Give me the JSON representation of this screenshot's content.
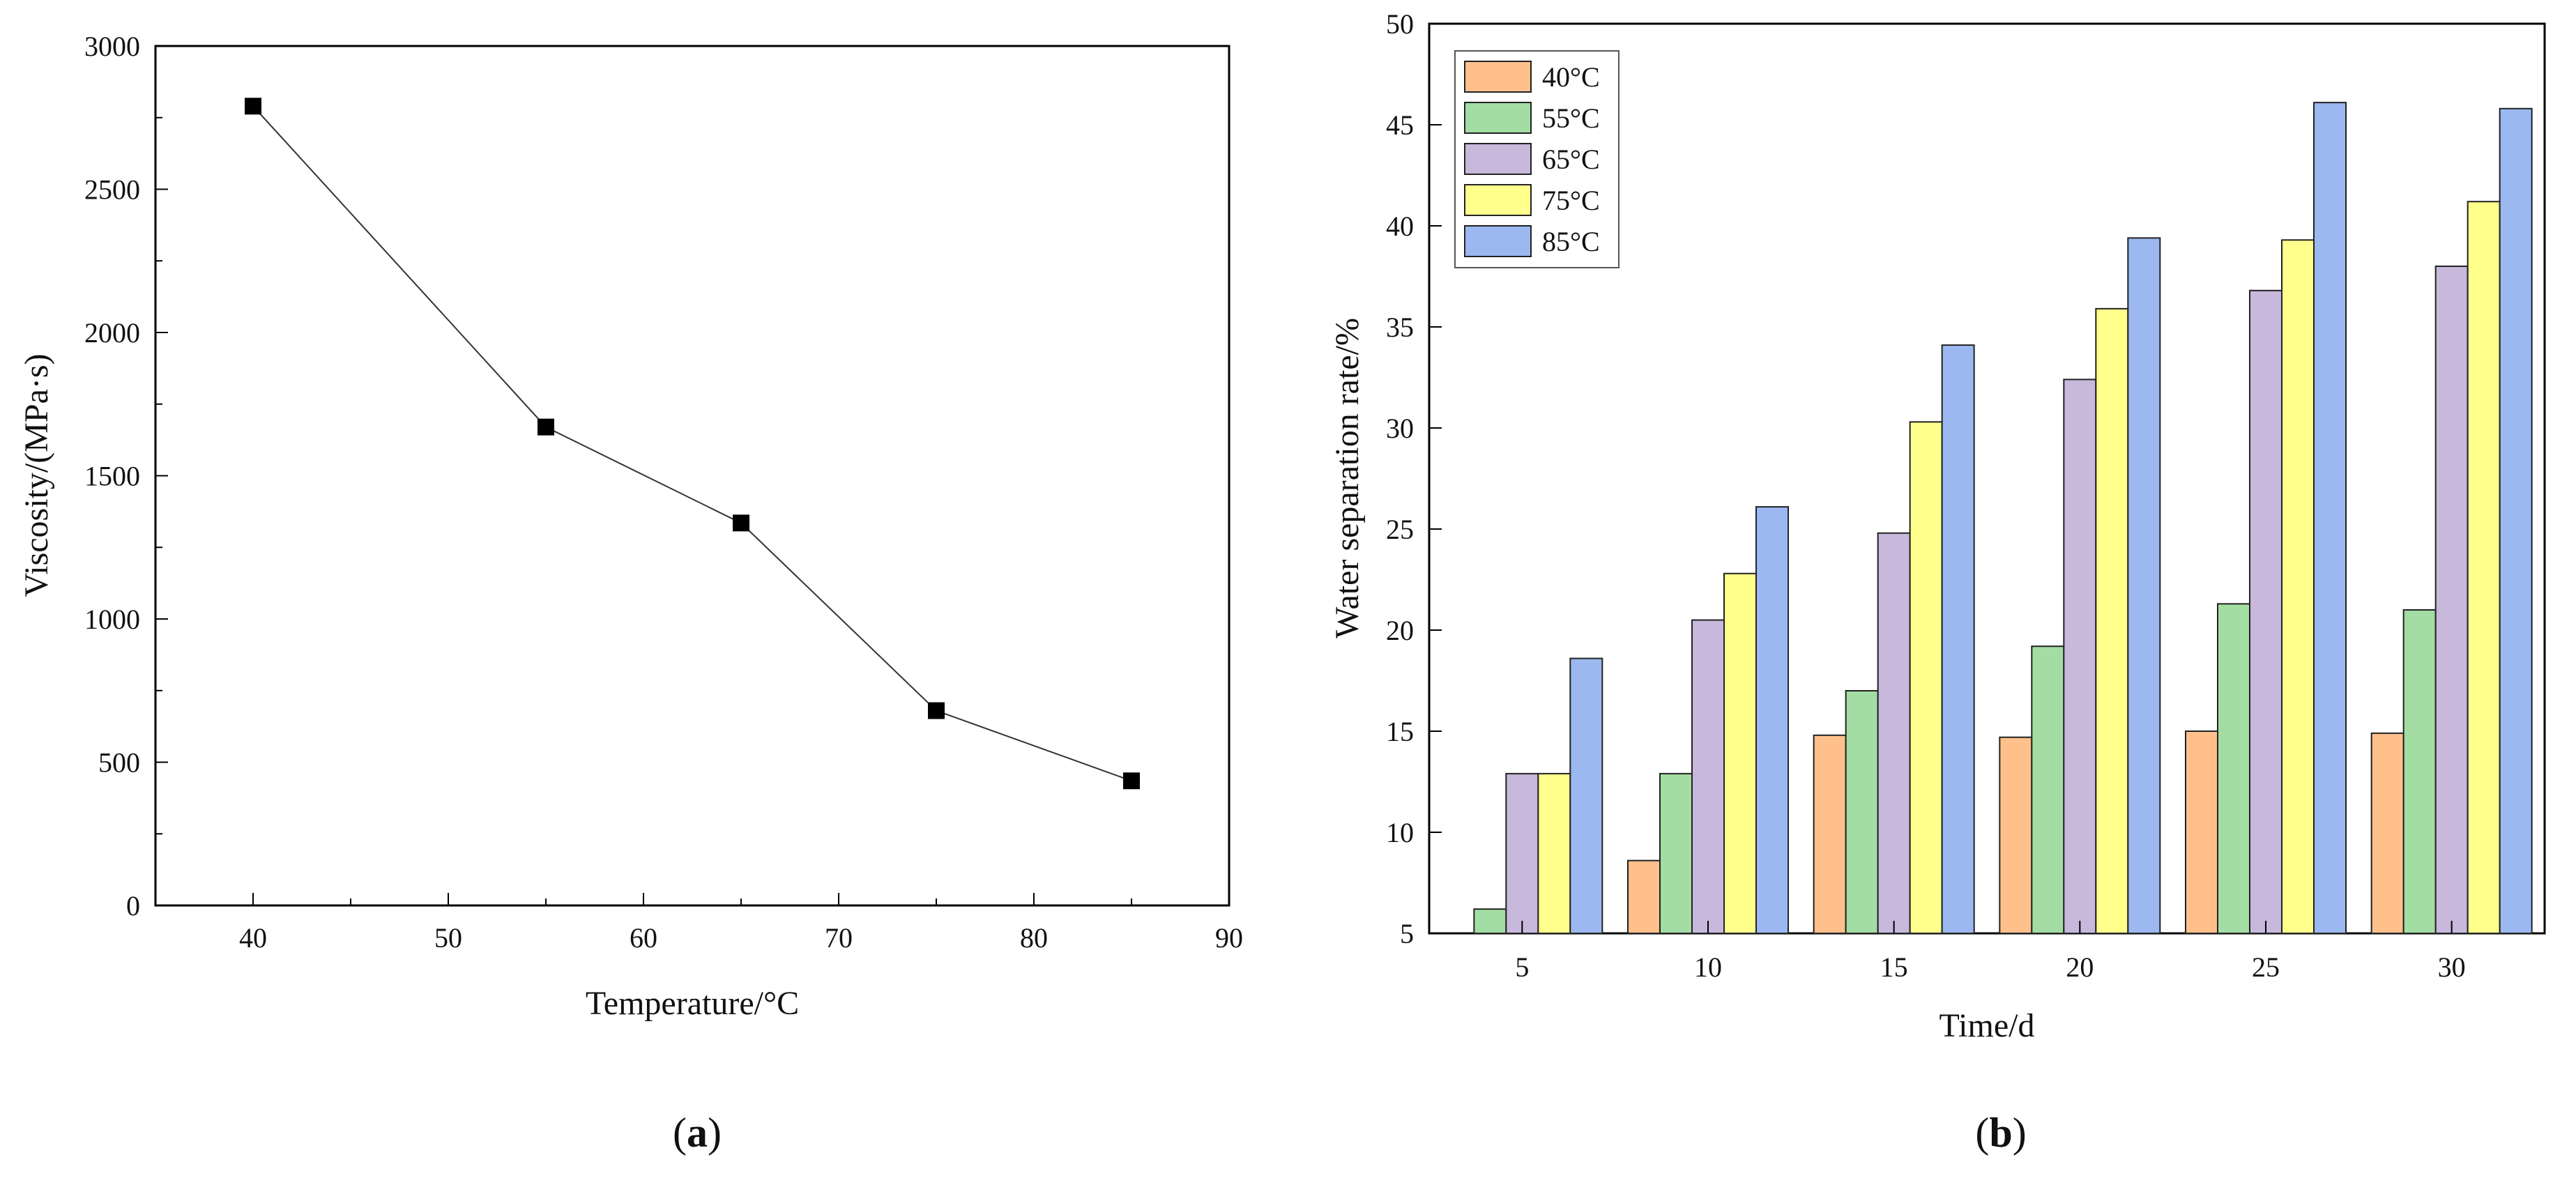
{
  "panels": [
    {
      "id": "a",
      "open": "(",
      "letter": "a",
      "close": ")"
    },
    {
      "id": "b",
      "open": "(",
      "letter": "b",
      "close": ")"
    }
  ],
  "chart_data": [
    {
      "id": "a",
      "type": "line",
      "marker": "square",
      "x": [
        40,
        55,
        65,
        75,
        85
      ],
      "y": [
        2790,
        1670,
        1335,
        680,
        435
      ],
      "xlabel": "Temperature/°C",
      "ylabel": "Viscosity/(MPa·s)",
      "xlim": [
        35,
        90
      ],
      "ylim": [
        0,
        3000
      ],
      "xticks": [
        "40",
        "50",
        "60",
        "70",
        "80",
        "90"
      ],
      "yticks": [
        "0",
        "500",
        "1000",
        "1500",
        "2000",
        "2500",
        "3000"
      ],
      "grid": false,
      "color": "#000000"
    },
    {
      "id": "b",
      "type": "bar",
      "categories": [
        "5",
        "10",
        "15",
        "20",
        "25",
        "30"
      ],
      "series": [
        {
          "name": "40°C",
          "color": "#FFC08C",
          "values": [
            5,
            8.6,
            14.8,
            14.7,
            15.0,
            14.9
          ]
        },
        {
          "name": "55°C",
          "color": "#A3DDA3",
          "values": [
            6.2,
            12.9,
            17.0,
            19.2,
            21.3,
            21.0
          ]
        },
        {
          "name": "65°C",
          "color": "#C7B8DC",
          "values": [
            12.9,
            20.5,
            24.8,
            32.4,
            36.8,
            38.0
          ]
        },
        {
          "name": "75°C",
          "color": "#FFFF8C",
          "values": [
            12.9,
            22.8,
            30.3,
            35.9,
            39.3,
            41.2
          ]
        },
        {
          "name": "85°C",
          "color": "#9BB8F0",
          "values": [
            18.6,
            26.1,
            34.1,
            39.4,
            46.1,
            45.8
          ]
        }
      ],
      "xlabel": "Time/d",
      "ylabel": "Water separation rate/%",
      "ylim": [
        5,
        50
      ],
      "yticks": [
        "5",
        "10",
        "15",
        "20",
        "25",
        "30",
        "35",
        "40",
        "45",
        "50"
      ],
      "legend_position": "top-left",
      "grid": false
    }
  ]
}
